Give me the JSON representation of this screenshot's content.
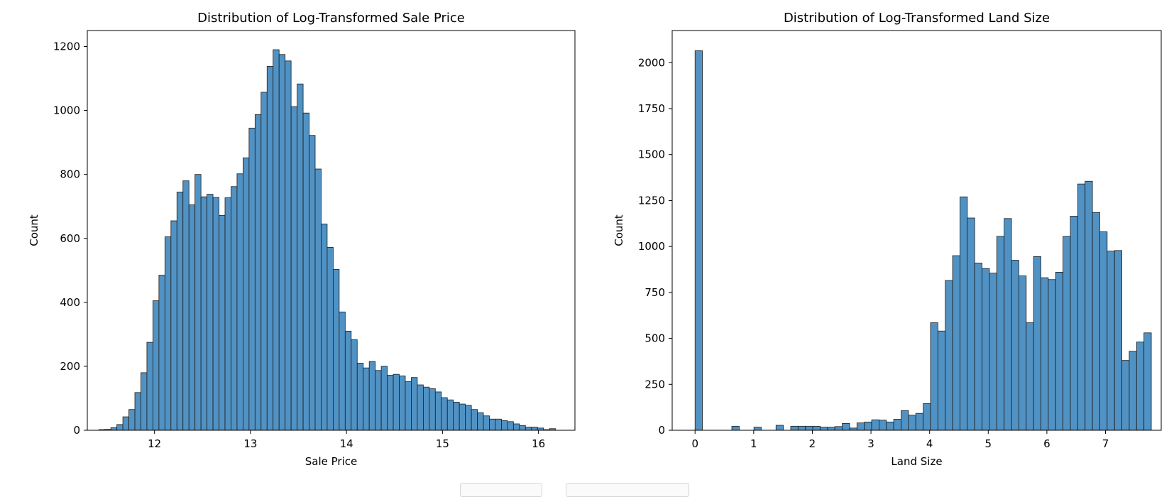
{
  "chart_data": [
    {
      "type": "bar",
      "title": "Distribution of Log-Transformed Sale Price",
      "xlabel": "Sale Price",
      "ylabel": "Count",
      "xlim": [
        11.3,
        16.38
      ],
      "ylim": [
        0,
        1250
      ],
      "xticks": [
        12,
        13,
        14,
        15,
        16
      ],
      "yticks": [
        0,
        200,
        400,
        600,
        800,
        1000,
        1200
      ],
      "bin_start": 11.42,
      "bin_width": 0.0626,
      "values": [
        2,
        3,
        8,
        18,
        42,
        65,
        118,
        180,
        275,
        405,
        485,
        605,
        655,
        745,
        780,
        705,
        800,
        730,
        738,
        728,
        672,
        727,
        762,
        802,
        852,
        945,
        987,
        1057,
        1138,
        1190,
        1175,
        1155,
        1012,
        1083,
        992,
        922,
        817,
        645,
        572,
        503,
        370,
        310,
        283,
        210,
        195,
        215,
        187,
        200,
        172,
        175,
        170,
        152,
        165,
        142,
        135,
        130,
        120,
        102,
        95,
        88,
        82,
        78,
        65,
        55,
        45,
        35,
        35,
        30,
        27,
        20,
        15,
        10,
        10,
        7,
        2,
        5
      ]
    },
    {
      "type": "bar",
      "title": "Distribution of Log-Transformed Land Size",
      "xlabel": "Land Size",
      "ylabel": "Count",
      "xlim": [
        -0.39,
        7.95
      ],
      "ylim": [
        0,
        2175
      ],
      "xticks": [
        0,
        1,
        2,
        3,
        4,
        5,
        6,
        7
      ],
      "yticks": [
        0,
        250,
        500,
        750,
        1000,
        1250,
        1500,
        1750,
        2000
      ],
      "bin_start": 0,
      "bin_width": 0.1255,
      "values": [
        2065,
        0,
        0,
        0,
        0,
        22,
        0,
        0,
        17,
        0,
        0,
        27,
        0,
        22,
        22,
        22,
        22,
        17,
        17,
        20,
        37,
        12,
        40,
        45,
        57,
        55,
        45,
        60,
        107,
        82,
        92,
        145,
        585,
        540,
        815,
        950,
        1270,
        1155,
        910,
        880,
        855,
        1055,
        1152,
        925,
        840,
        585,
        945,
        830,
        820,
        860,
        1055,
        1165,
        1340,
        1355,
        1185,
        1080,
        975,
        978,
        380,
        430,
        480,
        530
      ]
    }
  ],
  "controls": {
    "left_label": "",
    "right_label": ""
  },
  "colors": {
    "bar_fill": "#5192c4",
    "bar_edge": "#1c1c1c",
    "axis": "#000000"
  }
}
